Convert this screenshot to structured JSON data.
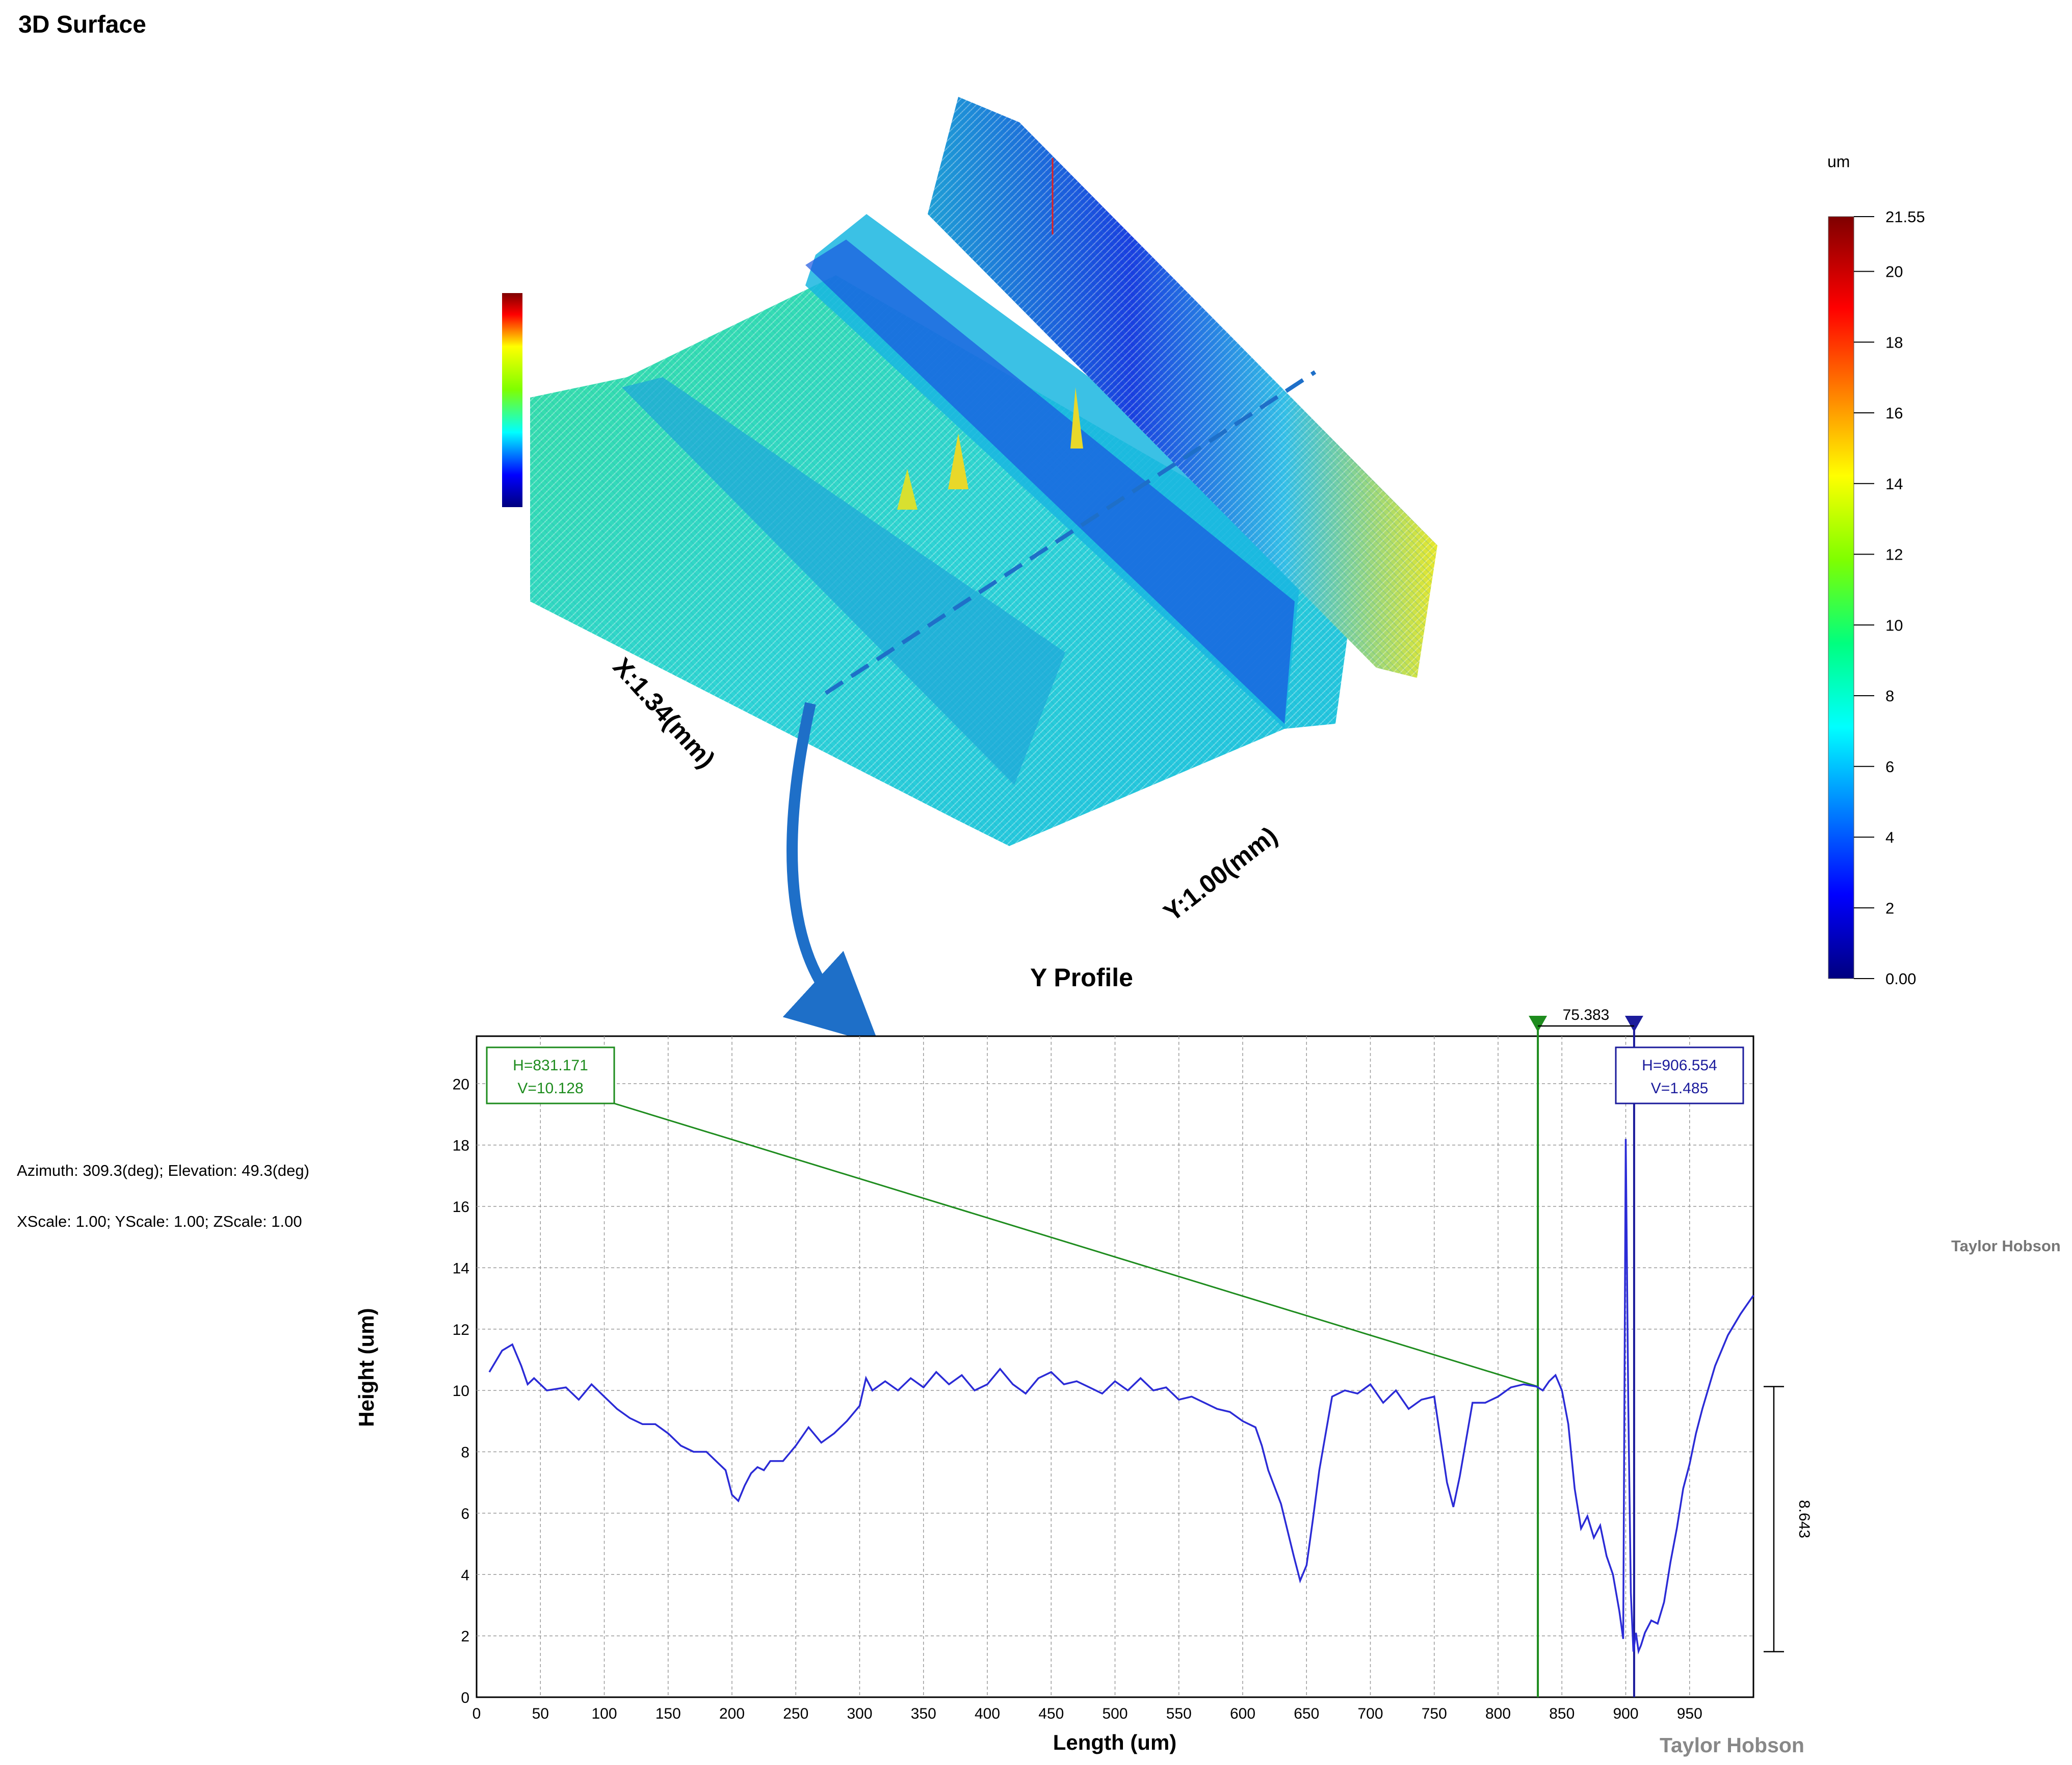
{
  "page": {
    "title": "3D Surface",
    "info_azimuth": "Azimuth: 309.3(deg); Elevation: 49.3(deg)",
    "info_scale": "XScale: 1.00; YScale: 1.00; ZScale: 1.00",
    "watermark_right": "Taylor Hobson",
    "watermark_bottom": "Taylor Hobson"
  },
  "surface": {
    "x_axis_label": "X:1.34(mm)",
    "y_axis_label": "Y:1.00(mm)",
    "colorbar_unit": "um",
    "colorbar_ticks": [
      "0.00",
      "2",
      "4",
      "6",
      "8",
      "10",
      "12",
      "14",
      "16",
      "18",
      "20",
      "21.55"
    ],
    "colorbar_tick_values": [
      0,
      2,
      4,
      6,
      8,
      10,
      12,
      14,
      16,
      18,
      20,
      21.55
    ],
    "colorbar_range": [
      0,
      21.55
    ],
    "colors": {
      "colormap": [
        "#00007f",
        "#0000ff",
        "#007fff",
        "#00ffff",
        "#00ff7f",
        "#7fff00",
        "#ffff00",
        "#ff7f00",
        "#ff0000",
        "#7f0000"
      ],
      "section_line": "#1e6fc8",
      "arrow": "#1e6fc8"
    }
  },
  "chart_data": {
    "type": "line",
    "title": "Y Profile",
    "xlabel": "Length (um)",
    "ylabel": "Height (um)",
    "xlim": [
      0,
      1000
    ],
    "ylim": [
      0,
      21.55
    ],
    "x_ticks": [
      0,
      50,
      100,
      150,
      200,
      250,
      300,
      350,
      400,
      450,
      500,
      550,
      600,
      650,
      700,
      750,
      800,
      850,
      900,
      950
    ],
    "y_ticks": [
      0,
      2,
      4,
      6,
      8,
      10,
      12,
      14,
      16,
      18,
      20
    ],
    "grid": true,
    "series": [
      {
        "color": "#2b2bd6",
        "x": [
          10,
          20,
          28,
          35,
          40,
          45,
          55,
          70,
          80,
          90,
          100,
          110,
          120,
          130,
          140,
          150,
          160,
          170,
          180,
          190,
          195,
          200,
          205,
          210,
          215,
          220,
          225,
          230,
          240,
          250,
          260,
          270,
          280,
          290,
          300,
          305,
          310,
          320,
          330,
          340,
          350,
          360,
          370,
          380,
          390,
          400,
          410,
          420,
          430,
          440,
          450,
          460,
          470,
          480,
          490,
          500,
          510,
          520,
          530,
          540,
          550,
          560,
          570,
          580,
          590,
          600,
          610,
          615,
          620,
          630,
          640,
          645,
          650,
          655,
          660,
          670,
          680,
          690,
          700,
          710,
          720,
          730,
          740,
          750,
          760,
          765,
          770,
          780,
          790,
          800,
          810,
          820,
          830,
          835,
          840,
          845,
          850,
          855,
          860,
          865,
          870,
          875,
          880,
          885,
          890,
          895,
          898,
          900,
          902,
          904,
          906,
          908,
          910,
          912,
          915,
          920,
          925,
          930,
          935,
          940,
          945,
          950,
          955,
          960,
          970,
          980,
          990,
          1000
        ],
        "values": [
          10.6,
          11.3,
          11.5,
          10.8,
          10.2,
          10.4,
          10.0,
          10.1,
          9.7,
          10.2,
          9.8,
          9.4,
          9.1,
          8.9,
          8.9,
          8.6,
          8.2,
          8.0,
          8.0,
          7.6,
          7.4,
          6.6,
          6.4,
          6.9,
          7.3,
          7.5,
          7.4,
          7.7,
          7.7,
          8.2,
          8.8,
          8.3,
          8.6,
          9.0,
          9.5,
          10.4,
          10.0,
          10.3,
          10.0,
          10.4,
          10.1,
          10.6,
          10.2,
          10.5,
          10.0,
          10.2,
          10.7,
          10.2,
          9.9,
          10.4,
          10.6,
          10.2,
          10.3,
          10.1,
          9.9,
          10.3,
          10.0,
          10.4,
          10.0,
          10.1,
          9.7,
          9.8,
          9.6,
          9.4,
          9.3,
          9.0,
          8.8,
          8.2,
          7.4,
          6.3,
          4.6,
          3.8,
          4.3,
          5.8,
          7.4,
          9.8,
          10.0,
          9.9,
          10.2,
          9.6,
          10.0,
          9.4,
          9.7,
          9.8,
          7.0,
          6.2,
          7.2,
          9.6,
          9.6,
          9.8,
          10.1,
          10.2,
          10.128,
          10.0,
          10.3,
          10.5,
          10.0,
          8.9,
          6.8,
          5.5,
          5.9,
          5.2,
          5.6,
          4.6,
          4.0,
          2.8,
          1.9,
          18.2,
          9.5,
          3.4,
          1.485,
          2.1,
          1.5,
          1.7,
          2.1,
          2.5,
          2.4,
          3.1,
          4.4,
          5.5,
          6.8,
          7.6,
          8.6,
          9.4,
          10.8,
          11.8,
          12.5,
          13.1
        ]
      }
    ],
    "cursors": [
      {
        "color": "#1e8c1e",
        "x": 831.171,
        "label_h": "H=831.171",
        "label_v": "V=10.128"
      },
      {
        "color": "#1c1c9c",
        "x": 906.554,
        "label_h": "H=906.554",
        "label_v": "V=1.485"
      }
    ],
    "horizontal_measure": {
      "value": 75.383,
      "label": "75.383"
    },
    "vertical_measure": {
      "from": 1.485,
      "to": 10.128,
      "label": "8.643"
    }
  }
}
